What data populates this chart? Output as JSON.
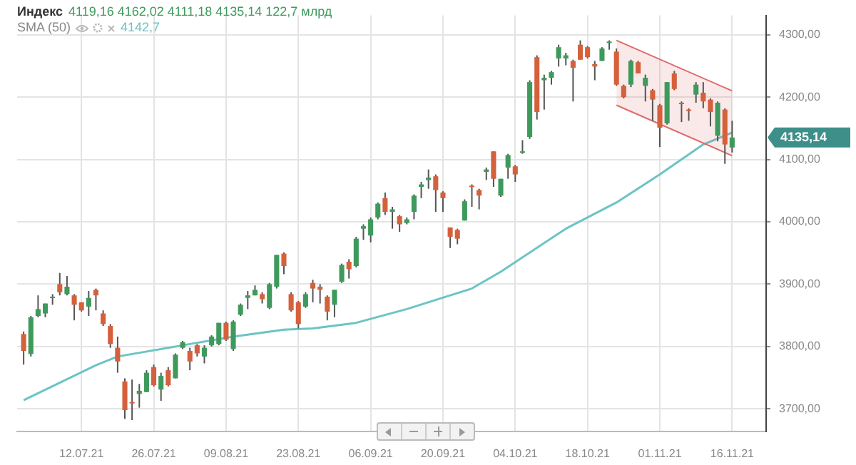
{
  "chart_data": {
    "type": "candlestick",
    "title": "Индекс",
    "annotations": [
      "4119,16  4162,02  4111,18  4135,14  122,7 млрд",
      "4142,7",
      "4135,14"
    ],
    "categories": [
      null,
      null,
      null,
      null,
      null,
      null,
      null,
      null,
      "12.07.21",
      null,
      null,
      null,
      null,
      null,
      null,
      null,
      null,
      null,
      "26.07.21",
      null,
      null,
      null,
      null,
      null,
      null,
      null,
      null,
      null,
      "09.08.21",
      null,
      null,
      null,
      null,
      null,
      null,
      null,
      null,
      null,
      "23.08.21",
      null,
      null,
      null,
      null,
      null,
      null,
      null,
      null,
      null,
      "06.09.21",
      null,
      null,
      null,
      null,
      null,
      null,
      null,
      null,
      null,
      "20.09.21",
      null,
      null,
      null,
      null,
      null,
      null,
      null,
      null,
      null,
      "04.10.21",
      null,
      null,
      null,
      null,
      null,
      null,
      null,
      null,
      null,
      "18.10.21",
      null,
      null,
      null,
      null,
      null,
      null,
      null,
      null,
      null,
      "01.11.21",
      null,
      null,
      null,
      null,
      null,
      null,
      null,
      null,
      null,
      "16.11.21"
    ],
    "ohlc": [
      [
        3820,
        3824,
        3771,
        3793
      ],
      [
        3788,
        3849,
        3784,
        3847
      ],
      [
        3849,
        3882,
        3847,
        3860
      ],
      [
        3853,
        3869,
        3847,
        3869
      ],
      [
        3878,
        3884,
        3867,
        3880
      ],
      [
        3900,
        3918,
        3882,
        3887
      ],
      [
        3884,
        3913,
        3882,
        3896
      ],
      [
        3882,
        3884,
        3842,
        3867
      ],
      [
        3871,
        3871,
        3856,
        3858
      ],
      [
        3864,
        3889,
        3849,
        3878
      ],
      [
        3891,
        3893,
        3858,
        3882
      ],
      [
        3853,
        3858,
        3833,
        3836
      ],
      [
        3833,
        3836,
        3798,
        3804
      ],
      [
        3798,
        3816,
        3758,
        3776
      ],
      [
        3744,
        3749,
        3684,
        3698
      ],
      [
        3711,
        3747,
        3682,
        3709
      ],
      [
        3724,
        3740,
        3702,
        3729
      ],
      [
        3727,
        3762,
        3727,
        3758
      ],
      [
        3767,
        3771,
        3736,
        3738
      ],
      [
        3731,
        3758,
        3713,
        3753
      ],
      [
        3762,
        3767,
        3736,
        3738
      ],
      [
        3749,
        3789,
        3749,
        3787
      ],
      [
        3798,
        3809,
        3796,
        3807
      ],
      [
        3793,
        3798,
        3762,
        3776
      ],
      [
        3802,
        3804,
        3784,
        3789
      ],
      [
        3784,
        3802,
        3773,
        3798
      ],
      [
        3802,
        3818,
        3800,
        3816
      ],
      [
        3804,
        3838,
        3802,
        3838
      ],
      [
        3838,
        3840,
        3809,
        3811
      ],
      [
        3796,
        3842,
        3793,
        3840
      ],
      [
        3851,
        3869,
        3849,
        3867
      ],
      [
        3878,
        3889,
        3860,
        3882
      ],
      [
        3882,
        3898,
        3882,
        3891
      ],
      [
        3884,
        3887,
        3869,
        3876
      ],
      [
        3862,
        3902,
        3860,
        3900
      ],
      [
        3896,
        3947,
        3893,
        3947
      ],
      [
        3949,
        3951,
        3916,
        3929
      ],
      [
        3884,
        3887,
        3856,
        3858
      ],
      [
        3871,
        3873,
        3829,
        3836
      ],
      [
        3864,
        3887,
        3862,
        3884
      ],
      [
        3902,
        3907,
        3871,
        3893
      ],
      [
        3896,
        3900,
        3869,
        3891
      ],
      [
        3880,
        3882,
        3842,
        3856
      ],
      [
        3867,
        3891,
        3847,
        3891
      ],
      [
        3904,
        3933,
        3902,
        3931
      ],
      [
        3936,
        3940,
        3909,
        3924
      ],
      [
        3929,
        3976,
        3927,
        3973
      ],
      [
        3989,
        3996,
        3971,
        3993
      ],
      [
        3978,
        4007,
        3967,
        4004
      ],
      [
        4007,
        4031,
        4004,
        4029
      ],
      [
        4038,
        4047,
        4011,
        4016
      ],
      [
        4016,
        4024,
        3989,
        4020
      ],
      [
        4009,
        4011,
        3984,
        3996
      ],
      [
        3998,
        4007,
        3996,
        4004
      ],
      [
        4016,
        4044,
        4004,
        4042
      ],
      [
        4056,
        4064,
        4038,
        4060
      ],
      [
        4067,
        4084,
        4053,
        4071
      ],
      [
        4073,
        4076,
        4016,
        4051
      ],
      [
        4047,
        4049,
        4016,
        4038
      ],
      [
        3991,
        3991,
        3958,
        3976
      ],
      [
        3987,
        3989,
        3964,
        3973
      ],
      [
        4002,
        4036,
        4002,
        4033
      ],
      [
        4058,
        4060,
        4024,
        4056
      ],
      [
        4051,
        4053,
        4020,
        4042
      ],
      [
        4080,
        4087,
        4067,
        4084
      ],
      [
        4113,
        4113,
        4056,
        4069
      ],
      [
        4042,
        4069,
        4040,
        4069
      ],
      [
        4087,
        4109,
        4069,
        4107
      ],
      [
        4089,
        4091,
        4064,
        4076
      ],
      [
        4111,
        4131,
        4109,
        4113
      ],
      [
        4136,
        4227,
        4133,
        4224
      ],
      [
        4264,
        4267,
        4164,
        4176
      ],
      [
        4227,
        4236,
        4180,
        4231
      ],
      [
        4231,
        4242,
        4220,
        4240
      ],
      [
        4262,
        4284,
        4249,
        4280
      ],
      [
        4262,
        4271,
        4251,
        4267
      ],
      [
        4258,
        4260,
        4193,
        4247
      ],
      [
        4284,
        4291,
        4260,
        4260
      ],
      [
        4280,
        4282,
        4262,
        4264
      ],
      [
        4253,
        4258,
        4227,
        4249
      ],
      [
        4258,
        4280,
        4258,
        4278
      ],
      [
        4287,
        4291,
        4276,
        4289
      ],
      [
        4273,
        4278,
        4218,
        4220
      ],
      [
        4218,
        4220,
        4198,
        4200
      ],
      [
        4220,
        4260,
        4216,
        4258
      ],
      [
        4256,
        4258,
        4238,
        4238
      ],
      [
        4218,
        4236,
        4193,
        4231
      ],
      [
        4211,
        4213,
        4162,
        4196
      ],
      [
        4187,
        4189,
        4120,
        4151
      ],
      [
        4158,
        4224,
        4156,
        4224
      ],
      [
        4238,
        4242,
        4211,
        4213
      ],
      [
        4191,
        4193,
        4160,
        4189
      ],
      [
        4180,
        4182,
        4162,
        4178
      ],
      [
        4204,
        4224,
        4191,
        4220
      ],
      [
        4207,
        4224,
        4182,
        4193
      ],
      [
        4196,
        4198,
        4153,
        4176
      ],
      [
        4138,
        4193,
        4129,
        4191
      ],
      [
        4180,
        4182,
        4093,
        4124
      ],
      [
        4119.16,
        4162.02,
        4111.18,
        4135.14
      ]
    ],
    "colors": [
      "#d5603c",
      "#3e9a5c",
      "#3e9a5c",
      "#3e9a5c",
      "#3e9a5c",
      "#d5603c",
      "#3e9a5c",
      "#d5603c",
      "#d5603c",
      "#3e9a5c",
      "#d5603c",
      "#d5603c",
      "#d5603c",
      "#d5603c",
      "#d5603c",
      "#d5603c",
      "#3e9a5c",
      "#3e9a5c",
      "#d5603c",
      "#3e9a5c",
      "#d5603c",
      "#3e9a5c",
      "#3e9a5c",
      "#d5603c",
      "#d5603c",
      "#3e9a5c",
      "#3e9a5c",
      "#3e9a5c",
      "#d5603c",
      "#3e9a5c",
      "#3e9a5c",
      "#3e9a5c",
      "#3e9a5c",
      "#d5603c",
      "#3e9a5c",
      "#3e9a5c",
      "#d5603c",
      "#d5603c",
      "#d5603c",
      "#3e9a5c",
      "#d5603c",
      "#d5603c",
      "#d5603c",
      "#3e9a5c",
      "#3e9a5c",
      "#d5603c",
      "#3e9a5c",
      "#3e9a5c",
      "#3e9a5c",
      "#3e9a5c",
      "#d5603c",
      "#3e9a5c",
      "#d5603c",
      "#3e9a5c",
      "#3e9a5c",
      "#3e9a5c",
      "#3e9a5c",
      "#d5603c",
      "#d5603c",
      "#d5603c",
      "#d5603c",
      "#3e9a5c",
      "#d5603c",
      "#d5603c",
      "#3e9a5c",
      "#d5603c",
      "#3e9a5c",
      "#3e9a5c",
      "#d5603c",
      "#3e9a5c",
      "#3e9a5c",
      "#d5603c",
      "#3e9a5c",
      "#3e9a5c",
      "#3e9a5c",
      "#3e9a5c",
      "#d5603c",
      "#d5603c",
      "#d5603c",
      "#d5603c",
      "#3e9a5c",
      "#3e9a5c",
      "#d5603c",
      "#d5603c",
      "#3e9a5c",
      "#d5603c",
      "#3e9a5c",
      "#d5603c",
      "#d5603c",
      "#3e9a5c",
      "#d5603c",
      "#d5603c",
      "#d5603c",
      "#3e9a5c",
      "#d5603c",
      "#d5603c",
      "#3e9a5c",
      "#d5603c",
      "#3e9a5c"
    ],
    "series": [
      {
        "type": "line",
        "color": "#e06a6a",
        "values": [
          null,
          null,
          null,
          null,
          null,
          null,
          null,
          null,
          null,
          null,
          null,
          null,
          null,
          null,
          null,
          null,
          null,
          null,
          null,
          null,
          null,
          null,
          null,
          null,
          null,
          null,
          null,
          null,
          null,
          null,
          null,
          null,
          null,
          null,
          null,
          null,
          null,
          null,
          null,
          null,
          null,
          null,
          null,
          null,
          null,
          null,
          null,
          null,
          null,
          null,
          null,
          null,
          null,
          null,
          null,
          null,
          null,
          null,
          null,
          null,
          null,
          null,
          null,
          null,
          null,
          null,
          null,
          null,
          null,
          null,
          null,
          null,
          null,
          null,
          null,
          null,
          null,
          null,
          null,
          null,
          null,
          null,
          4187,
          null,
          null,
          null,
          null,
          null,
          null,
          null,
          null,
          null,
          null,
          null,
          null,
          null,
          null,
          null,
          4106
        ]
      },
      {
        "type": "area",
        "color": "#e06a6a",
        "values": [
          null,
          null,
          null,
          null,
          null,
          null,
          null,
          null,
          null,
          null,
          null,
          null,
          null,
          null,
          null,
          null,
          null,
          null,
          null,
          null,
          null,
          null,
          null,
          null,
          null,
          null,
          null,
          null,
          null,
          null,
          null,
          null,
          null,
          null,
          null,
          null,
          null,
          null,
          null,
          null,
          null,
          null,
          null,
          null,
          null,
          null,
          null,
          null,
          null,
          null,
          null,
          null,
          null,
          null,
          null,
          null,
          null,
          null,
          null,
          null,
          null,
          null,
          null,
          null,
          null,
          null,
          null,
          null,
          null,
          null,
          null,
          null,
          null,
          null,
          null,
          null,
          null,
          null,
          null,
          null,
          null,
          null,
          4291,
          null,
          null,
          null,
          null,
          null,
          null,
          null,
          null,
          null,
          null,
          null,
          null,
          null,
          null,
          null,
          4210
        ]
      },
      {
        "type": "line",
        "name": "SMA (50)",
        "color": "#6cc4c4",
        "values": [
          3714,
          null,
          null,
          null,
          null,
          null,
          null,
          null,
          null,
          null,
          3770,
          null,
          null,
          3784,
          null,
          null,
          null,
          null,
          null,
          null,
          null,
          null,
          3802,
          null,
          null,
          null,
          null,
          null,
          null,
          3816,
          null,
          null,
          null,
          null,
          null,
          null,
          3827,
          null,
          null,
          null,
          3829,
          null,
          null,
          null,
          null,
          null,
          3838,
          null,
          null,
          null,
          null,
          null,
          null,
          3860,
          null,
          null,
          null,
          null,
          null,
          3882,
          null,
          null,
          3893,
          null,
          null,
          null,
          3920,
          null,
          null,
          null,
          null,
          null,
          null,
          null,
          null,
          3989,
          null,
          null,
          null,
          null,
          null,
          null,
          4031,
          null,
          null,
          null,
          null,
          null,
          4076,
          null,
          null,
          null,
          null,
          null,
          4124,
          null,
          null,
          null,
          4143
        ]
      }
    ],
    "ylim": [
      3664,
      4331
    ],
    "yticks": [
      {
        "value": 3700,
        "label": "3700,00"
      },
      {
        "value": 3800,
        "label": "3800,00"
      },
      {
        "value": 3900,
        "label": "3900,00"
      },
      {
        "value": 4000,
        "label": "4000,00"
      },
      {
        "value": 4100,
        "label": "4100,00"
      },
      {
        "value": 4200,
        "label": "4200,00"
      },
      {
        "value": 4300,
        "label": "4300,00"
      }
    ],
    "grid": true,
    "legend": false
  }
}
